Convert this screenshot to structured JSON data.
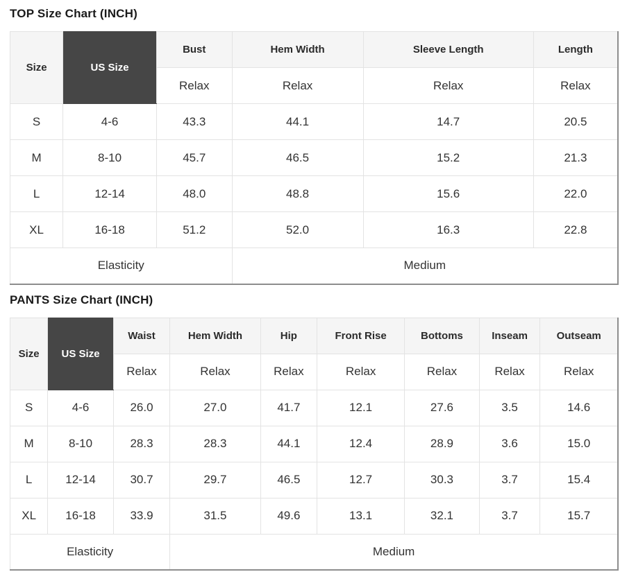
{
  "colors": {
    "header_bg": "#f5f5f5",
    "dark_cell_bg": "#464646",
    "dark_cell_text": "#ffffff",
    "cell_border": "#e3e3e3",
    "outer_border": "#8d8d8d",
    "text": "#333333"
  },
  "top_chart": {
    "title": "TOP Size Chart (INCH)",
    "corner": {
      "size": "Size",
      "us_size": "US Size"
    },
    "headers": [
      "Bust",
      "Hem Width",
      "Sleeve Length",
      "Length"
    ],
    "fit_row": [
      "Relax",
      "Relax",
      "Relax",
      "Relax"
    ],
    "rows": [
      {
        "size": "S",
        "us_size": "4-6",
        "values": [
          "43.3",
          "44.1",
          "14.7",
          "20.5"
        ]
      },
      {
        "size": "M",
        "us_size": "8-10",
        "values": [
          "45.7",
          "46.5",
          "15.2",
          "21.3"
        ]
      },
      {
        "size": "L",
        "us_size": "12-14",
        "values": [
          "48.0",
          "48.8",
          "15.6",
          "22.0"
        ]
      },
      {
        "size": "XL",
        "us_size": "16-18",
        "values": [
          "51.2",
          "52.0",
          "16.3",
          "22.8"
        ]
      }
    ],
    "footer": {
      "label": "Elasticity",
      "value": "Medium"
    }
  },
  "pants_chart": {
    "title": "PANTS Size Chart (INCH)",
    "corner": {
      "size": "Size",
      "us_size": "US Size"
    },
    "headers": [
      "Waist",
      "Hem Width",
      "Hip",
      "Front Rise",
      "Bottoms",
      "Inseam",
      "Outseam"
    ],
    "fit_row": [
      "Relax",
      "Relax",
      "Relax",
      "Relax",
      "Relax",
      "Relax",
      "Relax"
    ],
    "rows": [
      {
        "size": "S",
        "us_size": "4-6",
        "values": [
          "26.0",
          "27.0",
          "41.7",
          "12.1",
          "27.6",
          "3.5",
          "14.6"
        ]
      },
      {
        "size": "M",
        "us_size": "8-10",
        "values": [
          "28.3",
          "28.3",
          "44.1",
          "12.4",
          "28.9",
          "3.6",
          "15.0"
        ]
      },
      {
        "size": "L",
        "us_size": "12-14",
        "values": [
          "30.7",
          "29.7",
          "46.5",
          "12.7",
          "30.3",
          "3.7",
          "15.4"
        ]
      },
      {
        "size": "XL",
        "us_size": "16-18",
        "values": [
          "33.9",
          "31.5",
          "49.6",
          "13.1",
          "32.1",
          "3.7",
          "15.7"
        ]
      }
    ],
    "footer": {
      "label": "Elasticity",
      "value": "Medium"
    }
  },
  "chart_data": [
    {
      "type": "table",
      "title": "TOP Size Chart (INCH)",
      "columns": [
        "Size",
        "US Size",
        "Bust (Relax)",
        "Hem Width (Relax)",
        "Sleeve Length (Relax)",
        "Length (Relax)"
      ],
      "rows": [
        [
          "S",
          "4-6",
          43.3,
          44.1,
          14.7,
          20.5
        ],
        [
          "M",
          "8-10",
          45.7,
          46.5,
          15.2,
          21.3
        ],
        [
          "L",
          "12-14",
          48.0,
          48.8,
          15.6,
          22.0
        ],
        [
          "XL",
          "16-18",
          51.2,
          52.0,
          16.3,
          22.8
        ]
      ],
      "footer": {
        "Elasticity": "Medium"
      }
    },
    {
      "type": "table",
      "title": "PANTS Size Chart (INCH)",
      "columns": [
        "Size",
        "US Size",
        "Waist (Relax)",
        "Hem Width (Relax)",
        "Hip (Relax)",
        "Front Rise (Relax)",
        "Bottoms (Relax)",
        "Inseam (Relax)",
        "Outseam (Relax)"
      ],
      "rows": [
        [
          "S",
          "4-6",
          26.0,
          27.0,
          41.7,
          12.1,
          27.6,
          3.5,
          14.6
        ],
        [
          "M",
          "8-10",
          28.3,
          28.3,
          44.1,
          12.4,
          28.9,
          3.6,
          15.0
        ],
        [
          "L",
          "12-14",
          30.7,
          29.7,
          46.5,
          12.7,
          30.3,
          3.7,
          15.4
        ],
        [
          "XL",
          "16-18",
          33.9,
          31.5,
          49.6,
          13.1,
          32.1,
          3.7,
          15.7
        ]
      ],
      "footer": {
        "Elasticity": "Medium"
      }
    }
  ]
}
